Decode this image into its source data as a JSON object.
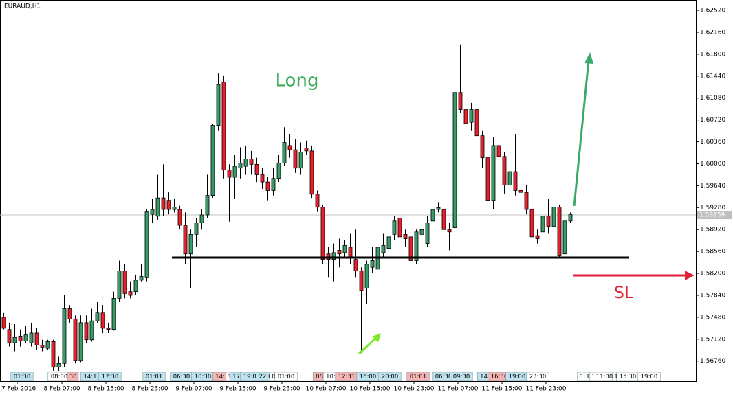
{
  "chart_data": {
    "type": "candlestick",
    "title": "EURAUD,H1",
    "open": [
      1.5748,
      1.5728,
      1.5706,
      1.5717,
      1.5709,
      1.5706,
      1.5722,
      1.5702,
      1.5697,
      1.5708,
      1.5666,
      1.5672,
      1.5762,
      1.5745,
      1.5677,
      1.5739,
      1.5711,
      1.5742,
      1.5756,
      1.573,
      1.5728,
      1.5779,
      1.5824,
      1.579,
      1.579,
      1.5809,
      1.5813,
      1.5917,
      1.5914,
      1.5944,
      1.594,
      1.5925,
      1.5925,
      1.5899,
      1.5852,
      1.5884,
      1.5903,
      1.5916,
      1.5948,
      1.6063,
      1.6134,
      1.599,
      1.5978,
      1.5993,
      1.5996,
      1.6008,
      1.5999,
      1.5982,
      1.597,
      1.5956,
      1.5976,
      1.6001,
      1.603,
      1.6023,
      1.5993,
      1.6026,
      1.6021,
      1.595,
      1.5929,
      1.5852,
      1.5843,
      1.5858,
      1.5854,
      1.5863,
      1.5843,
      1.5824,
      1.5796,
      1.583,
      1.5827,
      1.5854,
      1.5861,
      1.5884,
      1.5911,
      1.5884,
      1.588,
      1.5841,
      1.5884,
      1.5869,
      1.5906,
      1.5925,
      1.5925,
      1.5892,
      1.5895,
      1.6117,
      1.6089,
      1.6068,
      1.6089,
      1.6046,
      1.601,
      1.594,
      1.603,
      1.6012,
      1.5965,
      1.5987,
      1.5956,
      1.5953,
      1.5925,
      1.5882,
      1.5888,
      1.5914,
      1.5897,
      1.5929,
      1.5852,
      1.5906
    ],
    "high": [
      1.5756,
      1.5739,
      1.5737,
      1.5728,
      1.5734,
      1.5739,
      1.573,
      1.5711,
      1.5711,
      1.5711,
      1.5683,
      1.5784,
      1.5768,
      1.5751,
      1.5751,
      1.5751,
      1.5762,
      1.5773,
      1.5768,
      1.5739,
      1.579,
      1.5841,
      1.5835,
      1.5807,
      1.5818,
      1.5835,
      1.5925,
      1.5942,
      1.5982,
      1.5999,
      1.5953,
      1.5942,
      1.5931,
      1.592,
      1.5892,
      1.5911,
      1.5925,
      1.5982,
      1.6066,
      1.6148,
      1.6145,
      1.5999,
      1.6015,
      1.6027,
      1.603,
      1.6021,
      1.601,
      1.5993,
      1.5978,
      1.5993,
      1.6015,
      1.606,
      1.6049,
      1.6041,
      1.6035,
      1.6038,
      1.603,
      1.5956,
      1.5933,
      1.5863,
      1.5869,
      1.5877,
      1.5875,
      1.5886,
      1.5892,
      1.583,
      1.5841,
      1.5863,
      1.5875,
      1.5886,
      1.5892,
      1.5914,
      1.5917,
      1.5892,
      1.5888,
      1.5892,
      1.5903,
      1.5914,
      1.5937,
      1.5937,
      1.5931,
      1.5903,
      1.6252,
      1.6196,
      1.6106,
      1.61,
      1.6111,
      1.6055,
      1.6015,
      1.6044,
      1.6038,
      1.6019,
      1.5996,
      1.6049,
      1.597,
      1.5965,
      1.5931,
      1.5892,
      1.5925,
      1.5942,
      1.5942,
      1.5933,
      1.5914,
      1.592
    ],
    "low": [
      1.5728,
      1.57,
      1.5692,
      1.57,
      1.5706,
      1.57,
      1.5694,
      1.5692,
      1.5694,
      1.566,
      1.566,
      1.5666,
      1.5739,
      1.5672,
      1.5674,
      1.5706,
      1.5708,
      1.5739,
      1.5722,
      1.5722,
      1.5726,
      1.5773,
      1.5779,
      1.5779,
      1.5784,
      1.5807,
      1.5807,
      1.5903,
      1.5908,
      1.5914,
      1.5917,
      1.592,
      1.5892,
      1.5835,
      1.5796,
      1.5863,
      1.5892,
      1.5911,
      1.5944,
      1.6055,
      1.5976,
      1.5905,
      1.5942,
      1.5976,
      1.5982,
      1.5982,
      1.597,
      1.5959,
      1.594,
      1.5948,
      1.597,
      1.5996,
      1.601,
      1.5985,
      1.5982,
      1.6015,
      1.5944,
      1.5922,
      1.5835,
      1.5813,
      1.5807,
      1.583,
      1.5846,
      1.5835,
      1.5813,
      1.5689,
      1.577,
      1.5821,
      1.5821,
      1.5846,
      1.5841,
      1.5875,
      1.5872,
      1.5863,
      1.579,
      1.5835,
      1.5863,
      1.5863,
      1.5897,
      1.592,
      1.588,
      1.5858,
      1.5892,
      1.6083,
      1.606,
      1.6055,
      1.6032,
      1.5993,
      1.5931,
      1.5925,
      1.6004,
      1.5951,
      1.5959,
      1.5948,
      1.5931,
      1.5917,
      1.5869,
      1.5869,
      1.588,
      1.5886,
      1.5892,
      1.5846,
      1.585,
      1.5903
    ],
    "close": [
      1.573,
      1.5706,
      1.5715,
      1.5709,
      1.5719,
      1.5722,
      1.5702,
      1.5699,
      1.5708,
      1.5666,
      1.5672,
      1.5762,
      1.5745,
      1.5677,
      1.5739,
      1.5711,
      1.5742,
      1.5756,
      1.573,
      1.5728,
      1.5779,
      1.5824,
      1.5787,
      1.5784,
      1.5809,
      1.5815,
      1.5922,
      1.5925,
      1.5944,
      1.5925,
      1.5925,
      1.5929,
      1.5899,
      1.5852,
      1.5884,
      1.5903,
      1.5916,
      1.5948,
      1.6063,
      1.613,
      1.599,
      1.5978,
      1.5996,
      1.6001,
      1.6008,
      1.5999,
      1.5982,
      1.597,
      1.5956,
      1.5976,
      1.6001,
      1.6035,
      1.6023,
      1.5993,
      1.6019,
      1.6021,
      1.595,
      1.5929,
      1.5843,
      1.5843,
      1.5854,
      1.5852,
      1.5866,
      1.5846,
      1.5824,
      1.5792,
      1.5835,
      1.5841,
      1.5863,
      1.5866,
      1.588,
      1.5906,
      1.588,
      1.5877,
      1.5841,
      1.5888,
      1.5892,
      1.5903,
      1.5925,
      1.5928,
      1.5892,
      1.5888,
      1.6117,
      1.6089,
      1.6066,
      1.6089,
      1.6046,
      1.601,
      1.594,
      1.603,
      1.6012,
      1.5965,
      1.5987,
      1.5956,
      1.5953,
      1.5925,
      1.588,
      1.5877,
      1.5914,
      1.5897,
      1.5929,
      1.585,
      1.5906,
      1.5917
    ],
    "up_color": "#3a9a68",
    "down_color": "#e8202a",
    "ylim": [
      1.5643,
      1.6269
    ],
    "yticks": [
      {
        "value": 1.6252,
        "label": "1.62520"
      },
      {
        "value": 1.6216,
        "label": "1.62160"
      },
      {
        "value": 1.618,
        "label": "1.61800"
      },
      {
        "value": 1.6144,
        "label": "1.61440"
      },
      {
        "value": 1.6108,
        "label": "1.61080"
      },
      {
        "value": 1.6072,
        "label": "1.60720"
      },
      {
        "value": 1.6036,
        "label": "1.60360"
      },
      {
        "value": 1.6,
        "label": "1.60000"
      },
      {
        "value": 1.5964,
        "label": "1.59640"
      },
      {
        "value": 1.5928,
        "label": "1.59280"
      },
      {
        "value": 1.5892,
        "label": "1.58920"
      },
      {
        "value": 1.5856,
        "label": "1.58560"
      },
      {
        "value": 1.582,
        "label": "1.58200"
      },
      {
        "value": 1.5784,
        "label": "1.57840"
      },
      {
        "value": 1.5748,
        "label": "1.57480"
      },
      {
        "value": 1.5712,
        "label": "1.57120"
      },
      {
        "value": 1.5676,
        "label": "1.56760"
      }
    ],
    "x_labels": [
      "7 Feb 2016",
      "8 Feb 07:00",
      "8 Feb 15:00",
      "8 Feb 23:00",
      "9 Feb 07:00",
      "9 Feb 15:00",
      "9 Feb 23:00",
      "10 Feb 07:00",
      "10 Feb 15:00",
      "10 Feb 23:00",
      "11 Feb 07:00",
      "11 Feb 15:00",
      "11 Feb 23:00"
    ],
    "current_price": {
      "value": 1.59159,
      "label": "1.59159"
    },
    "support_level": 1.5846,
    "annotations": [
      {
        "text": "Long",
        "color": "#3aaa5a"
      },
      {
        "text": "SL",
        "color": "#e0202a"
      }
    ],
    "event_markers": [
      {
        "label": "01:30",
        "color": "#bfe3ee"
      },
      {
        "label": "08:00",
        "color": "#ffffff"
      },
      {
        "label": "30",
        "color": "#f5b5b5"
      },
      {
        "label": "14:1",
        "color": "#bfe3ee"
      },
      {
        "label": "17:30",
        "color": "#bfe3ee"
      },
      {
        "label": "01:01",
        "color": "#bfe3ee"
      },
      {
        "label": "06:30",
        "color": "#bfe3ee"
      },
      {
        "label": "10:30",
        "color": "#bfe3ee"
      },
      {
        "label": "14:",
        "color": "#f5b5b5"
      },
      {
        "label": "1",
        "color": "#ffffff"
      },
      {
        "label": "17:",
        "color": "#bfe3ee"
      },
      {
        "label": "19:00",
        "color": "#bfe3ee"
      },
      {
        "label": "22:0",
        "color": "#bfe3ee"
      },
      {
        "label": "0",
        "color": "#ffffff"
      },
      {
        "label": "01:00",
        "color": "#ffffff"
      },
      {
        "label": "08:",
        "color": "#f5b5b5"
      },
      {
        "label": "10:",
        "color": "#ffffff"
      },
      {
        "label": "12:31",
        "color": "#f5b5b5"
      },
      {
        "label": "16:00",
        "color": "#bfe3ee"
      },
      {
        "label": "20:00",
        "color": "#bfe3ee"
      },
      {
        "label": "01:01",
        "color": "#f5b5b5"
      },
      {
        "label": "06:30",
        "color": "#bfe3ee"
      },
      {
        "label": "09:30",
        "color": "#bfe3ee"
      },
      {
        "label": "14:",
        "color": "#bfe3ee"
      },
      {
        "label": "16:30",
        "color": "#f5b5b5"
      },
      {
        "label": "19:00",
        "color": "#bfe3ee"
      },
      {
        "label": "23:30",
        "color": "#ffffff"
      },
      {
        "label": "0",
        "color": "#ffffff"
      },
      {
        "label": "1",
        "color": "#ffffff"
      },
      {
        "label": "1",
        "color": "#ffffff"
      },
      {
        "label": "11:00",
        "color": "#ffffff"
      },
      {
        "label": "1",
        "color": "#ffffff"
      },
      {
        "label": "15:30",
        "color": "#ffffff"
      },
      {
        "label": "19:00",
        "color": "#ffffff"
      }
    ]
  }
}
